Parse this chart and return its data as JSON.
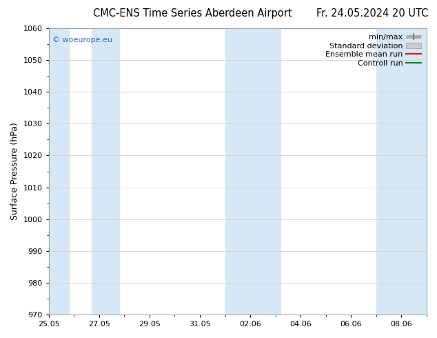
{
  "title_left": "CMC-ENS Time Series Aberdeen Airport",
  "title_right": "Fr. 24.05.2024 20 UTC",
  "ylabel": "Surface Pressure (hPa)",
  "ylim": [
    970,
    1060
  ],
  "yticks": [
    970,
    980,
    990,
    1000,
    1010,
    1020,
    1030,
    1040,
    1050,
    1060
  ],
  "xtick_labels": [
    "25.05",
    "27.05",
    "29.05",
    "31.05",
    "02.06",
    "04.06",
    "06.06",
    "08.06"
  ],
  "xtick_positions": [
    0,
    2,
    4,
    6,
    8,
    10,
    12,
    14
  ],
  "xlim": [
    0,
    15
  ],
  "shaded_bands": [
    {
      "xmin": -0.1,
      "xmax": 0.8
    },
    {
      "xmin": 1.7,
      "xmax": 2.8
    },
    {
      "xmin": 7.0,
      "xmax": 9.2
    },
    {
      "xmin": 13.0,
      "xmax": 15.1
    }
  ],
  "shaded_color": "#d6e8f5",
  "background_color": "#ffffff",
  "grid_color": "#cccccc",
  "watermark_text": "© woeurope.eu",
  "watermark_color": "#3a6abf",
  "legend_labels": [
    "min/max",
    "Standard deviation",
    "Ensemble mean run",
    "Controll run"
  ],
  "legend_colors": [
    "#aaaaaa",
    "#cccccc",
    "#ff0000",
    "#008000"
  ],
  "legend_lws": [
    3.5,
    6,
    1.5,
    1.5
  ],
  "title_fontsize": 10.5,
  "axis_label_fontsize": 9,
  "tick_fontsize": 8,
  "legend_fontsize": 8
}
